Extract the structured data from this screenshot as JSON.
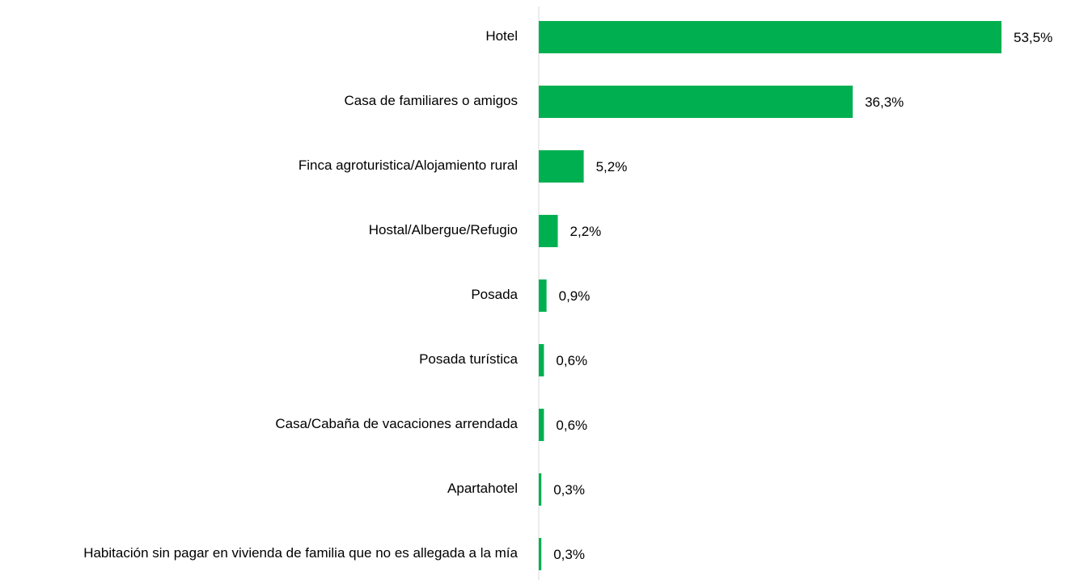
{
  "chart_data": {
    "type": "bar",
    "orientation": "horizontal",
    "categories": [
      "Hotel",
      "Casa de familiares o amigos",
      "Finca agroturistica/Alojamiento rural",
      "Hostal/Albergue/Refugio",
      "Posada",
      "Posada turística",
      "Casa/Cabaña de vacaciones arrendada",
      "Apartahotel",
      "Habitación sin pagar en vivienda de familia que no es allegada a la mía"
    ],
    "values": [
      53.5,
      36.3,
      5.2,
      2.2,
      0.9,
      0.6,
      0.6,
      0.3,
      0.3
    ],
    "value_labels": [
      "53,5%",
      "36,3%",
      "5,2%",
      "2,2%",
      "0,9%",
      "0,6%",
      "0,6%",
      "0,3%",
      "0,3%"
    ],
    "color": "#00b050"
  }
}
